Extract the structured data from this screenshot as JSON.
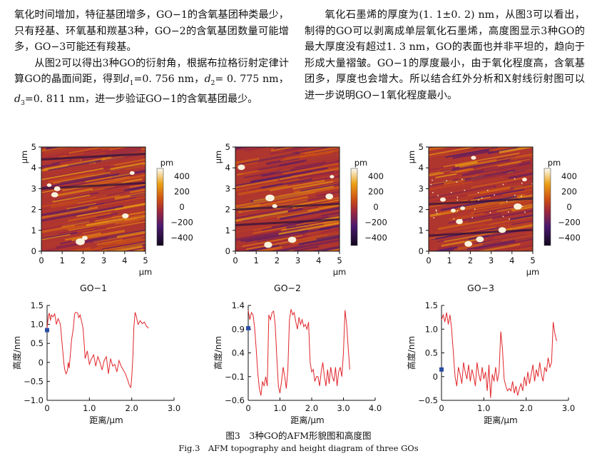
{
  "text": {
    "left": [
      {
        "indent": false,
        "text": "氧化时间增加，特征基团增多，GO−1的含氧基团种类最少，只有羟基、环氧基和羰基3种，GO−2的含氧基团数量可能增多，GO−3可能还有羧基。"
      },
      {
        "indent": true,
        "parts": [
          "从图2可以得出3种GO的衍射角，根据布拉格衍射定律计算GO的晶面间距，得到",
          "d",
          "1",
          "=0. 756 nm，",
          "d",
          "2",
          "= 0. 775 nm，",
          "d",
          "3",
          "=0. 811 nm，进一步验证GO−1的含氧基团最少。"
        ]
      }
    ],
    "right": [
      {
        "indent": true,
        "text": "氧化石墨烯的厚度为(1. 1±0. 2) nm，从图3可以看出，制得的GO可以剥离成单层氧化石墨烯，高度图显示3种GO的最大厚度没有超过1. 3 nm，GO的表面也并非平坦的，趋向于形成大量褶皱。GO−1的厚度最小，由于氧化程度高，含氧基团多，厚度也会增大。所以结合红外分析和X射线衍射图可以进一步说明GO−1氧化程度最小。"
      }
    ]
  },
  "figure": {
    "afm_panels": [
      {
        "label": "GO−1",
        "seed": 11,
        "variant": 1
      },
      {
        "label": "GO−2",
        "seed": 23,
        "variant": 2
      },
      {
        "label": "GO−3",
        "seed": 37,
        "variant": 3
      }
    ],
    "afm_axis": {
      "unit": "μm",
      "ticks": [
        "0",
        "1",
        "2",
        "3",
        "4",
        "5"
      ]
    },
    "colorbar": {
      "unit": "pm",
      "ticks": [
        "400",
        "200",
        "0",
        "−200",
        "−400"
      ],
      "values": [
        400,
        200,
        0,
        -200,
        -400
      ]
    },
    "caption_cn": "图3　3种GO的AFM形貌图和高度图",
    "caption_en": "Fig.3　AFM topography and height diagram of three GOs"
  },
  "chart_data": [
    {
      "type": "line",
      "title": "",
      "xlabel": "距离/μm",
      "ylabel": "高度/nm",
      "xlim": [
        0,
        3.0
      ],
      "ylim": [
        -1.0,
        1.5
      ],
      "xticks": [
        0,
        1.0,
        2.0,
        3.0
      ],
      "xtick_labels": [
        "0",
        "1.0",
        "2.0",
        "3.0"
      ],
      "yticks": [
        -1.0,
        -0.5,
        0,
        0.5,
        1.0,
        1.5
      ],
      "ytick_labels": [
        "−1.0",
        "−0.5",
        "0",
        "0.5",
        "1.0",
        "1.5"
      ],
      "marker": {
        "x": 0,
        "y": 0.85
      },
      "series": [
        {
          "x": [
            0,
            0.03,
            0.05,
            0.08,
            0.1,
            0.14,
            0.18,
            0.22,
            0.26,
            0.3,
            0.32,
            0.35,
            0.38,
            0.4,
            0.42,
            0.45,
            0.48,
            0.5,
            0.52,
            0.55,
            0.58,
            0.62,
            0.65,
            0.68,
            0.72,
            0.75,
            0.78,
            0.82,
            0.85,
            0.88,
            0.9,
            0.95,
            1.0,
            1.05,
            1.1,
            1.15,
            1.2,
            1.25,
            1.3,
            1.35,
            1.4,
            1.45,
            1.5,
            1.55,
            1.6,
            1.65,
            1.7,
            1.75,
            1.8,
            1.85,
            1.9,
            1.95,
            1.98,
            2.0,
            2.03,
            2.05,
            2.08,
            2.1,
            2.15,
            2.2,
            2.25,
            2.3,
            2.35,
            2.4
          ],
          "y": [
            0.9,
            1.22,
            1.3,
            1.1,
            1.25,
            1.2,
            1.28,
            1.0,
            1.15,
            1.05,
            0.95,
            0.55,
            0.2,
            -0.05,
            -0.2,
            -0.3,
            -0.22,
            0.0,
            -0.15,
            0.2,
            0.6,
            0.9,
            1.28,
            1.32,
            1.3,
            1.18,
            1.25,
            1.05,
            0.9,
            0.45,
            0.1,
            0.3,
            -0.05,
            0.1,
            0.2,
            -0.1,
            0.15,
            0.0,
            -0.2,
            0.05,
            0.15,
            -0.3,
            0.1,
            -0.1,
            -0.05,
            -0.25,
            0.05,
            -0.1,
            -0.2,
            -0.3,
            -0.45,
            -0.62,
            -0.66,
            -0.4,
            0.2,
            0.9,
            1.32,
            1.25,
            1.0,
            1.1,
            1.02,
            1.06,
            0.95,
            0.9
          ]
        }
      ]
    },
    {
      "type": "line",
      "title": "",
      "xlabel": "距离/μm",
      "ylabel": "高度/nm",
      "xlim": [
        0,
        4.0
      ],
      "ylim": [
        -0.6,
        1.4
      ],
      "xticks": [
        0,
        1.0,
        2.0,
        3.0,
        4.0
      ],
      "xtick_labels": [
        "0",
        "1.0",
        "2.0",
        "3.0",
        "4.0"
      ],
      "yticks": [
        -0.6,
        -0.1,
        0.4,
        0.9,
        1.4
      ],
      "ytick_labels": [
        "−0.6",
        "−0.1",
        "0.4",
        "0.9",
        "1.4"
      ],
      "marker": {
        "x": 0,
        "y": 0.92
      },
      "series": [
        {
          "x": [
            0,
            0.05,
            0.1,
            0.15,
            0.2,
            0.25,
            0.3,
            0.35,
            0.4,
            0.45,
            0.5,
            0.55,
            0.6,
            0.65,
            0.7,
            0.75,
            0.8,
            0.85,
            0.9,
            0.95,
            1.0,
            1.05,
            1.1,
            1.15,
            1.2,
            1.25,
            1.3,
            1.35,
            1.4,
            1.45,
            1.5,
            1.55,
            1.6,
            1.65,
            1.7,
            1.75,
            1.8,
            1.85,
            1.9,
            1.95,
            2.0,
            2.05,
            2.1,
            2.15,
            2.2,
            2.25,
            2.3,
            2.35,
            2.4,
            2.45,
            2.5,
            2.55,
            2.6,
            2.65,
            2.7,
            2.75,
            2.8,
            2.85,
            2.9,
            2.95,
            3.0,
            3.05,
            3.1,
            3.15,
            3.2
          ],
          "y": [
            1.3,
            1.1,
            1.25,
            1.2,
            0.95,
            0.5,
            0.0,
            -0.35,
            -0.5,
            -0.2,
            -0.3,
            -0.1,
            -0.3,
            1.2,
            1.1,
            1.25,
            1.28,
            1.0,
            0.3,
            -0.3,
            -0.45,
            -0.2,
            0.1,
            -0.1,
            -0.35,
            0.05,
            1.1,
            1.32,
            1.2,
            1.25,
            1.05,
            0.9,
            1.15,
            1.0,
            1.1,
            0.95,
            1.0,
            0.9,
            1.05,
            0.2,
            0.0,
            0.05,
            -0.2,
            -0.1,
            -0.1,
            -0.3,
            0.0,
            0.2,
            -0.1,
            -0.3,
            0.05,
            -0.25,
            0.1,
            -0.1,
            -0.2,
            0.1,
            -0.3,
            0.0,
            0.1,
            -0.1,
            0.4,
            1.3,
            1.0,
            0.5,
            0.05
          ]
        }
      ]
    },
    {
      "type": "line",
      "title": "",
      "xlabel": "距离/μm",
      "ylabel": "高度/nm",
      "xlim": [
        0,
        3.0
      ],
      "ylim": [
        -0.5,
        1.5
      ],
      "xticks": [
        0,
        1.0,
        2.0,
        3.0
      ],
      "xtick_labels": [
        "0",
        "1.0",
        "2.0",
        "3.0"
      ],
      "yticks": [
        -0.5,
        0,
        0.5,
        1.0,
        1.5
      ],
      "ytick_labels": [
        "−0.5",
        "0",
        "0.5",
        "1.0",
        "1.5"
      ],
      "marker": {
        "x": 0,
        "y": 0.15
      },
      "series": [
        {
          "x": [
            0,
            0.04,
            0.08,
            0.12,
            0.16,
            0.2,
            0.24,
            0.28,
            0.32,
            0.36,
            0.4,
            0.44,
            0.48,
            0.52,
            0.56,
            0.6,
            0.64,
            0.68,
            0.72,
            0.76,
            0.8,
            0.84,
            0.88,
            0.92,
            0.96,
            1.0,
            1.04,
            1.08,
            1.12,
            1.16,
            1.2,
            1.24,
            1.28,
            1.32,
            1.36,
            1.4,
            1.44,
            1.48,
            1.52,
            1.56,
            1.6,
            1.64,
            1.68,
            1.72,
            1.76,
            1.8,
            1.84,
            1.88,
            1.92,
            1.96,
            2.0,
            2.04,
            2.08,
            2.12,
            2.16,
            2.2,
            2.24,
            2.28,
            2.32,
            2.36,
            2.4,
            2.44,
            2.48,
            2.52,
            2.56,
            2.6,
            2.64,
            2.68,
            2.72
          ],
          "y": [
            1.2,
            1.3,
            1.15,
            1.35,
            1.1,
            1.3,
            1.0,
            0.5,
            0.0,
            -0.2,
            0.2,
            0.05,
            -0.15,
            0.3,
            0.1,
            -0.05,
            0.25,
            -0.1,
            0.15,
            0.0,
            -0.2,
            0.3,
            0.05,
            -0.1,
            0.2,
            -0.05,
            0.1,
            -0.3,
            0.25,
            -0.45,
            0.05,
            -0.1,
            0.2,
            -0.1,
            0.1,
            0.95,
            0.6,
            -0.05,
            -0.2,
            -0.3,
            -0.25,
            -0.3,
            -0.1,
            -0.35,
            -0.2,
            -0.4,
            -0.25,
            -0.15,
            -0.3,
            0.0,
            -0.2,
            0.1,
            -0.15,
            0.05,
            0.25,
            -0.1,
            0.15,
            0.0,
            0.3,
            0.05,
            -0.1,
            0.2,
            0.1,
            0.4,
            0.2,
            0.3,
            1.15,
            0.9,
            0.75
          ]
        }
      ]
    }
  ]
}
